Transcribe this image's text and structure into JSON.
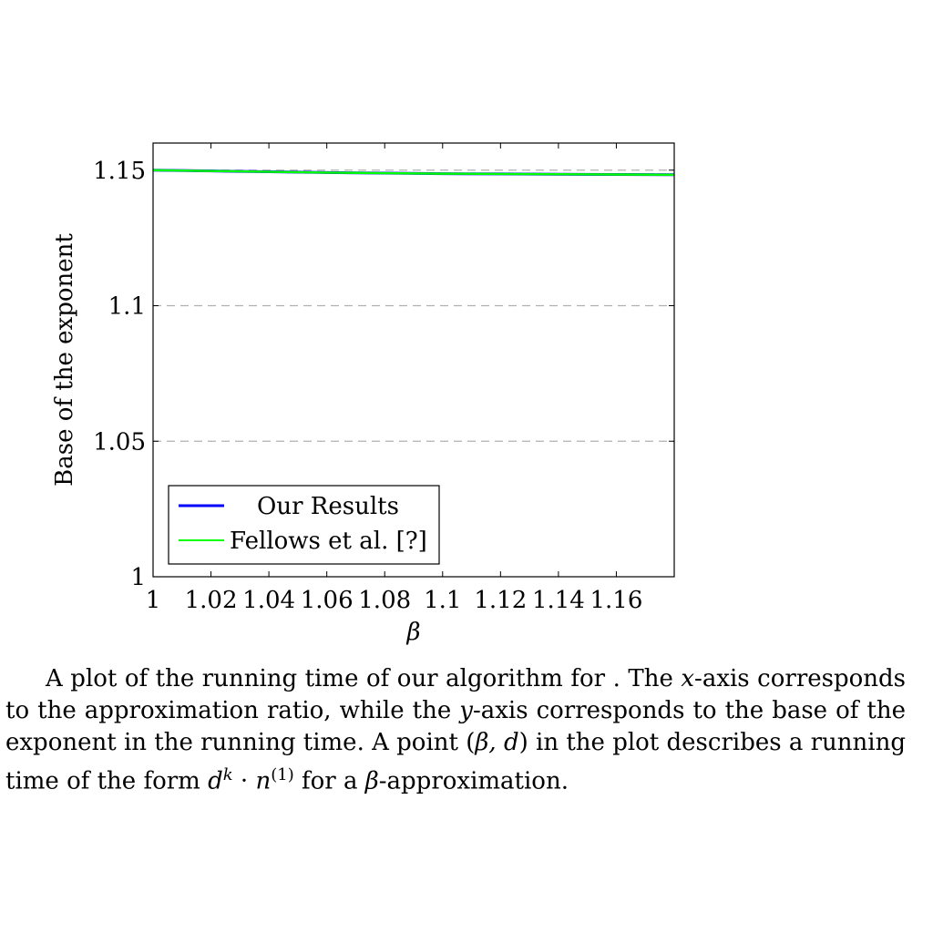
{
  "chart_data": {
    "type": "line",
    "xlabel": "β",
    "ylabel": "Base of the exponent",
    "xlim": [
      1,
      1.18
    ],
    "ylim": [
      1,
      1.16
    ],
    "x_ticks": [
      1,
      1.02,
      1.04,
      1.06,
      1.08,
      1.1,
      1.12,
      1.14,
      1.16
    ],
    "x_tick_labels": [
      "1",
      "1.02",
      "1.04",
      "1.06",
      "1.08",
      "1.1",
      "1.12",
      "1.14",
      "1.16"
    ],
    "y_ticks": [
      1,
      1.05,
      1.1,
      1.15
    ],
    "y_tick_labels": [
      "1",
      "1.05",
      "1.1",
      "1.15"
    ],
    "grid": "horizontal dashed",
    "legend_position": "bottom-left",
    "series": [
      {
        "name": "Our Results",
        "color": "#0000ff",
        "x": [
          1,
          1.02,
          1.04,
          1.06,
          1.08,
          1.1,
          1.12,
          1.14,
          1.16,
          1.18
        ],
        "values": [
          1.15,
          1.1497,
          1.1494,
          1.1491,
          1.1489,
          1.1487,
          1.1486,
          1.1485,
          1.1484,
          1.1483
        ]
      },
      {
        "name": "Fellows et al. [?]",
        "color": "#00ff00",
        "x": [
          1,
          1.02,
          1.04,
          1.06,
          1.08,
          1.1,
          1.12,
          1.14,
          1.16,
          1.18
        ],
        "values": [
          1.15,
          1.1497,
          1.1494,
          1.1491,
          1.1489,
          1.1487,
          1.1486,
          1.1485,
          1.1484,
          1.1483
        ]
      }
    ]
  },
  "caption": {
    "s1": "A plot of the running time of our algorithm for . The ",
    "x": "x",
    "s2": "-axis corresponds to the approximation ratio, while the ",
    "y": "y",
    "s3": "-axis corresponds to the base of the exponent in the running time. A point (",
    "pt": "β, d",
    "s4": ") in the plot describes a running time of the form ",
    "d": "d",
    "k": "k",
    "s5": " · ",
    "n": "n",
    "one": "(1)",
    "s6": " for a ",
    "beta": "β",
    "s7": "-approximation."
  }
}
